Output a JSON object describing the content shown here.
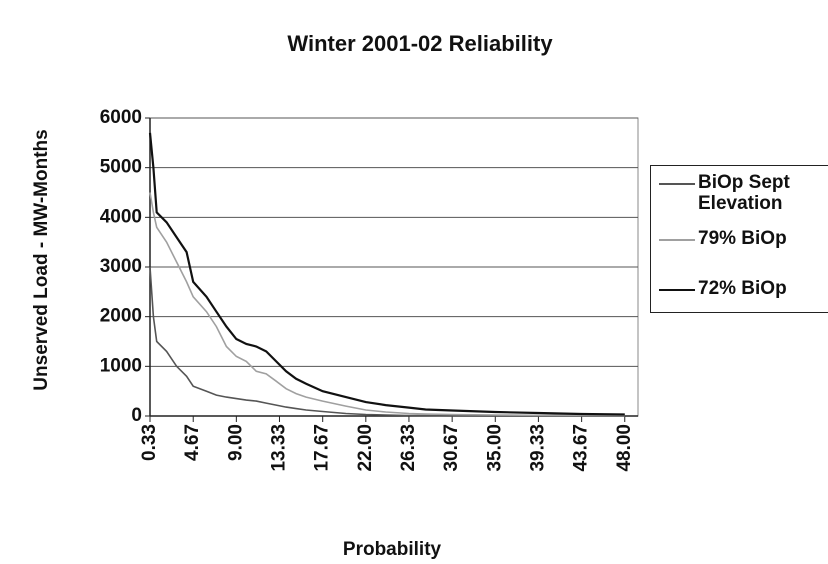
{
  "chart_data": {
    "type": "line",
    "title": "Winter 2001-02 Reliability",
    "x_label": "Probability",
    "y_label": "Unserved Load - MW-Months",
    "x": [
      0.33,
      0.67,
      1,
      2,
      3,
      4,
      4.67,
      6,
      7,
      8,
      9,
      10,
      11,
      12,
      13,
      14,
      15,
      16,
      17.67,
      20,
      22,
      24,
      26.33,
      28,
      30.67,
      35,
      39.33,
      43.67,
      48
    ],
    "series": [
      {
        "name": "BiOp Sept Elevation",
        "color": "#555555",
        "values": [
          3000,
          2000,
          1500,
          1300,
          1000,
          800,
          600,
          500,
          420,
          380,
          350,
          320,
          300,
          260,
          220,
          180,
          150,
          120,
          90,
          50,
          30,
          20,
          10,
          8,
          5,
          3,
          2,
          1,
          0
        ]
      },
      {
        "name": "79% BiOp",
        "color": "#a0a0a0",
        "values": [
          4500,
          4100,
          3800,
          3500,
          3100,
          2700,
          2400,
          2100,
          1800,
          1400,
          1200,
          1100,
          900,
          850,
          700,
          550,
          450,
          380,
          300,
          200,
          120,
          80,
          50,
          40,
          30,
          20,
          15,
          12,
          10
        ]
      },
      {
        "name": "72% BiOp",
        "color": "#111111",
        "values": [
          5700,
          5000,
          4100,
          3900,
          3600,
          3300,
          2700,
          2400,
          2100,
          1800,
          1550,
          1450,
          1400,
          1300,
          1100,
          900,
          750,
          650,
          500,
          380,
          280,
          220,
          170,
          130,
          110,
          80,
          60,
          40,
          30
        ]
      }
    ],
    "xlim": [
      0.33,
      49.33
    ],
    "xticks": [
      0.33,
      4.67,
      {
        "value": 9,
        "label": "9.00"
      },
      13.33,
      17.67,
      {
        "value": 22,
        "label": "22.00"
      },
      26.33,
      30.67,
      {
        "value": 35,
        "label": "35.00"
      },
      39.33,
      43.67,
      {
        "value": 48,
        "label": "48.00"
      }
    ],
    "ylim": [
      0,
      6000
    ],
    "yticks": [
      0,
      1000,
      2000,
      3000,
      4000,
      5000,
      6000
    ],
    "grid": true,
    "legend": "right"
  }
}
